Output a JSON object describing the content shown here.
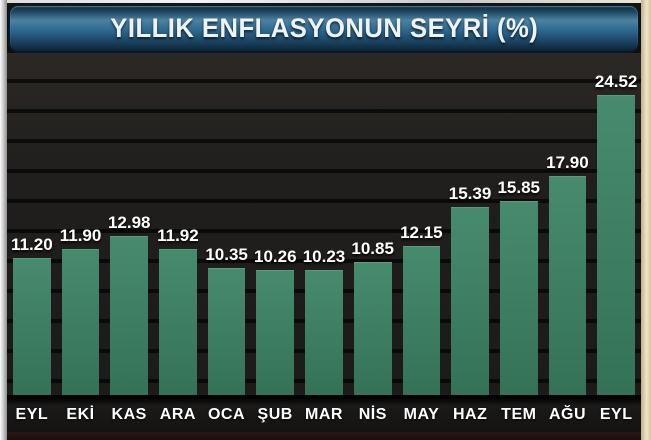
{
  "header": {
    "title": "YILLIK ENFLASYONUN SEYRİ (%)"
  },
  "chart_data": {
    "type": "bar",
    "title": "YILLIK ENFLASYONUN SEYRİ (%)",
    "categories": [
      "EYL",
      "EKİ",
      "KAS",
      "ARA",
      "OCA",
      "ŞUB",
      "MAR",
      "NİS",
      "MAY",
      "HAZ",
      "TEM",
      "AĞU",
      "EYL"
    ],
    "values": [
      11.2,
      11.9,
      12.98,
      11.92,
      10.35,
      10.26,
      10.23,
      10.85,
      12.15,
      15.39,
      15.85,
      17.9,
      24.52
    ],
    "value_labels": [
      "11.20",
      "11.90",
      "12.98",
      "11.92",
      "10.35",
      "10.26",
      "10.23",
      "10.85",
      "12.15",
      "15.39",
      "15.85",
      "17.90",
      "24.52"
    ],
    "xlabel": "",
    "ylabel": "",
    "ylim": [
      0,
      26
    ],
    "grid": "horizontal-blind-stripes",
    "legend_position": "none",
    "colors": {
      "bar": "#347257",
      "bar_light": "#478b6e",
      "value_label": "#ffffff",
      "axis_label": "#ffffff",
      "plot_background": "#211f1d",
      "title_bar_blue": "#2f6b91"
    }
  }
}
